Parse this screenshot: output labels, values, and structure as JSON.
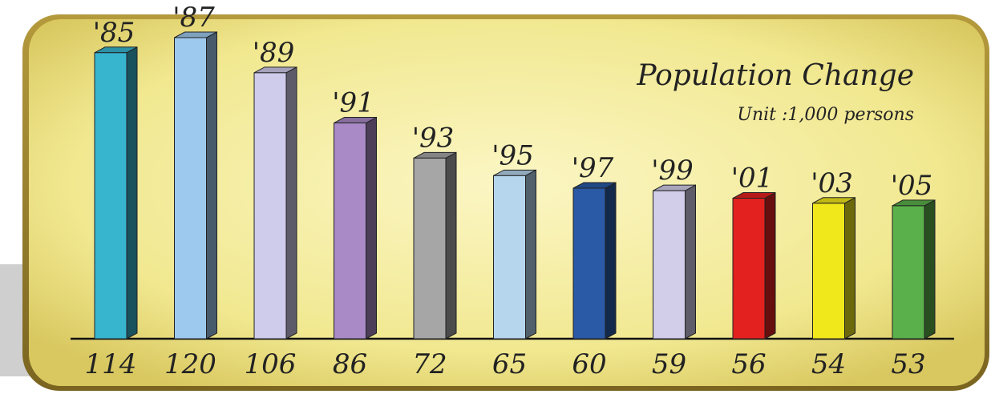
{
  "chart_data": {
    "type": "bar",
    "title": "Population Change",
    "subtitle": "Unit :1,000 persons",
    "categories": [
      "'85",
      "'87",
      "'89",
      "'91",
      "'93",
      "'95",
      "'97",
      "'99",
      "'01",
      "'03",
      "'05"
    ],
    "values": [
      114,
      120,
      106,
      86,
      72,
      65,
      60,
      59,
      56,
      54,
      53
    ],
    "value_labels": [
      "114",
      "120",
      "106",
      "86",
      "72",
      "65",
      "60",
      "59",
      "56",
      "54",
      "53"
    ],
    "colors": [
      "#37b5cf",
      "#9ec9ee",
      "#cfcbeb",
      "#a98ac6",
      "#a6a6a6",
      "#b5d6ec",
      "#2a5aa6",
      "#d2cde9",
      "#e3221f",
      "#f1e81b",
      "#5ab04a"
    ],
    "ylim": [
      0,
      130
    ],
    "grid": false,
    "legend": "none",
    "background_color": "#f3ec9a"
  }
}
